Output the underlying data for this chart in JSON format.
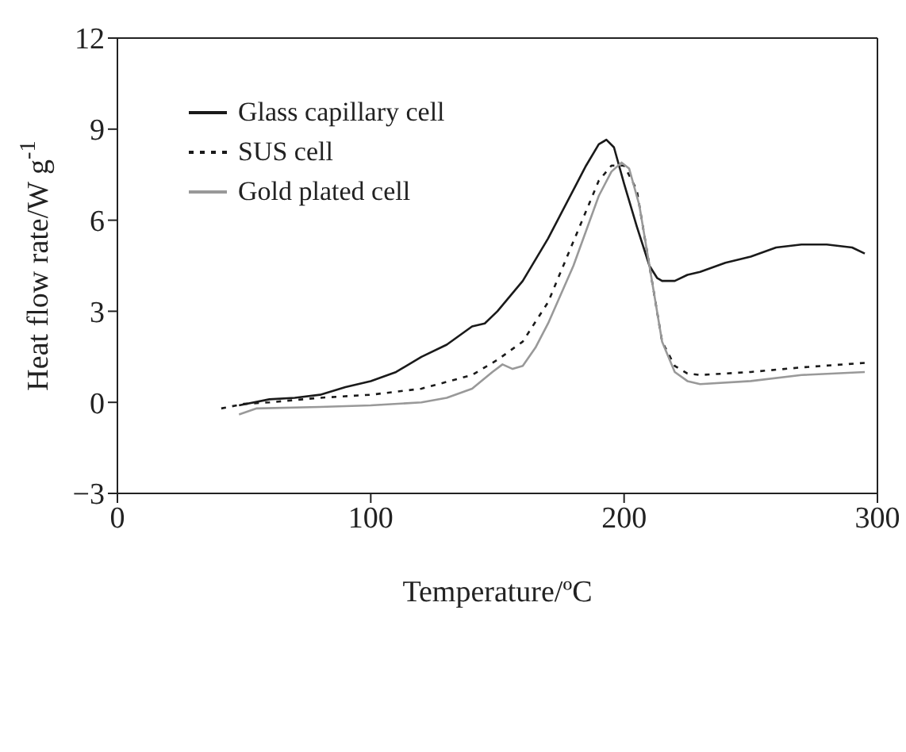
{
  "chart_data": {
    "type": "line",
    "xlabel": "Temperature/ºC",
    "ylabel": "Heat flow rate/W g$^{-1}$",
    "xlim": [
      0,
      300
    ],
    "xticks": [
      0,
      100,
      200,
      300
    ],
    "ylim": [
      -3,
      12
    ],
    "yticks": [
      {
        "value": -3,
        "label": "−3"
      },
      0,
      3,
      6,
      9,
      12
    ],
    "legend": "top left",
    "marker": "none",
    "series": [
      {
        "name": "Glass capillary cell",
        "color": "#1a1a1a",
        "line_style": "solid",
        "x": [
          48,
          60,
          70,
          80,
          90,
          100,
          110,
          120,
          130,
          140,
          145,
          150,
          160,
          170,
          180,
          185,
          190,
          193,
          196,
          200,
          205,
          210,
          213,
          215,
          220,
          225,
          230,
          240,
          250,
          260,
          270,
          280,
          290,
          295
        ],
        "values": [
          -0.1,
          0.1,
          0.15,
          0.25,
          0.5,
          0.7,
          1.0,
          1.5,
          1.9,
          2.5,
          2.6,
          3.0,
          4.0,
          5.4,
          7.0,
          7.8,
          8.5,
          8.65,
          8.4,
          7.2,
          5.8,
          4.5,
          4.1,
          4.0,
          4.0,
          4.2,
          4.3,
          4.6,
          4.8,
          5.1,
          5.2,
          5.2,
          5.1,
          4.9
        ]
      },
      {
        "name": "SUS cell",
        "color": "#1a1a1a",
        "line_style": "dotted",
        "x": [
          41,
          50,
          60,
          80,
          100,
          120,
          140,
          150,
          160,
          170,
          180,
          190,
          195,
          200,
          205,
          210,
          215,
          220,
          225,
          230,
          250,
          270,
          295
        ],
        "values": [
          -0.2,
          -0.05,
          0.0,
          0.15,
          0.25,
          0.45,
          0.9,
          1.4,
          2.0,
          3.3,
          5.3,
          7.3,
          7.8,
          7.8,
          7.0,
          4.5,
          2.0,
          1.2,
          0.95,
          0.9,
          1.0,
          1.15,
          1.3
        ]
      },
      {
        "name": "Gold plated cell",
        "color": "#999999",
        "line_style": "solid",
        "x": [
          48,
          55,
          80,
          100,
          120,
          130,
          140,
          148,
          152,
          156,
          160,
          165,
          170,
          180,
          190,
          195,
          199,
          202,
          206,
          210,
          215,
          220,
          225,
          230,
          250,
          270,
          295
        ],
        "values": [
          -0.4,
          -0.2,
          -0.15,
          -0.1,
          0.0,
          0.15,
          0.45,
          1.0,
          1.25,
          1.1,
          1.2,
          1.8,
          2.6,
          4.5,
          6.8,
          7.6,
          7.9,
          7.7,
          6.5,
          4.5,
          2.0,
          1.0,
          0.7,
          0.6,
          0.7,
          0.9,
          1.0
        ]
      }
    ]
  }
}
